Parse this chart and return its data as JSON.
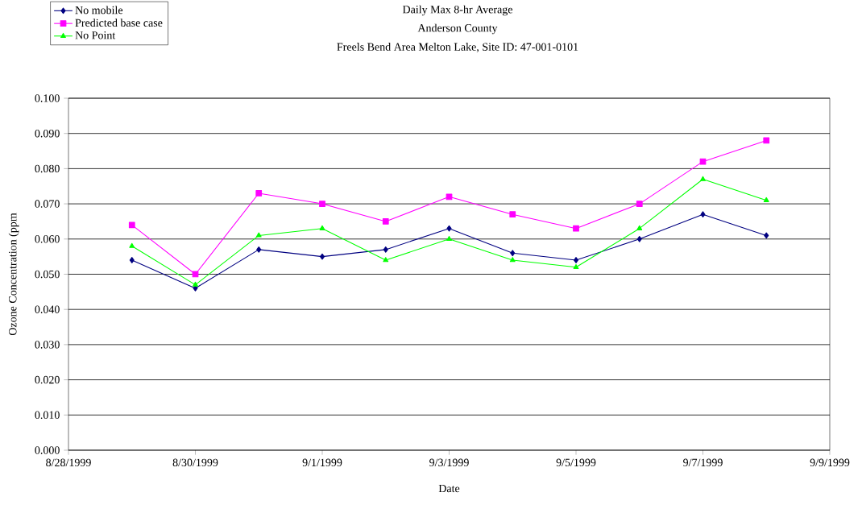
{
  "chart_data": {
    "type": "line",
    "title": "Daily Max 8-hr Average",
    "subtitle": "Anderson County",
    "annotations": [
      "Freels Bend Area Melton Lake,  Site ID: 47-001-0101"
    ],
    "xlabel": "Date",
    "ylabel": "Ozone Concentration (ppm",
    "x": [
      "1999-08-29",
      "1999-08-30",
      "1999-08-31",
      "1999-09-01",
      "1999-09-02",
      "1999-09-03",
      "1999-09-04",
      "1999-09-05",
      "1999-09-06",
      "1999-09-07",
      "1999-09-08"
    ],
    "series": [
      {
        "name": "No mobile",
        "color": "#000080",
        "marker": "diamond",
        "values": [
          0.054,
          0.046,
          0.057,
          0.055,
          0.057,
          0.063,
          0.056,
          0.054,
          0.06,
          0.067,
          0.061
        ]
      },
      {
        "name": "Predicted base case",
        "color": "#ff00ff",
        "marker": "square",
        "values": [
          0.064,
          0.05,
          0.073,
          0.07,
          0.065,
          0.072,
          0.067,
          0.063,
          0.07,
          0.082,
          0.088
        ]
      },
      {
        "name": "No Point",
        "color": "#00ff00",
        "marker": "triangle",
        "values": [
          0.058,
          0.047,
          0.061,
          0.063,
          0.054,
          0.06,
          0.054,
          0.052,
          0.063,
          0.077,
          0.071
        ]
      }
    ],
    "xlim": [
      "1999-08-28",
      "1999-09-09"
    ],
    "xticks": [
      {
        "value": "1999-08-28",
        "label": "8/28/1999"
      },
      {
        "value": "1999-08-30",
        "label": "8/30/1999"
      },
      {
        "value": "1999-09-01",
        "label": "9/1/1999"
      },
      {
        "value": "1999-09-03",
        "label": "9/3/1999"
      },
      {
        "value": "1999-09-05",
        "label": "9/5/1999"
      },
      {
        "value": "1999-09-07",
        "label": "9/7/1999"
      },
      {
        "value": "1999-09-09",
        "label": "9/9/1999"
      }
    ],
    "ylim": [
      0,
      0.1
    ],
    "yticks": [
      {
        "value": 0,
        "label": "0.000"
      },
      {
        "value": 0.01,
        "label": "0.010"
      },
      {
        "value": 0.02,
        "label": "0.020"
      },
      {
        "value": 0.03,
        "label": "0.030"
      },
      {
        "value": 0.04,
        "label": "0.040"
      },
      {
        "value": 0.05,
        "label": "0.050"
      },
      {
        "value": 0.06,
        "label": "0.060"
      },
      {
        "value": 0.07,
        "label": "0.070"
      },
      {
        "value": 0.08,
        "label": "0.080"
      },
      {
        "value": 0.09,
        "label": "0.090"
      },
      {
        "value": 0.1,
        "label": "0.100"
      }
    ],
    "grid": "y",
    "legend": "top left"
  }
}
